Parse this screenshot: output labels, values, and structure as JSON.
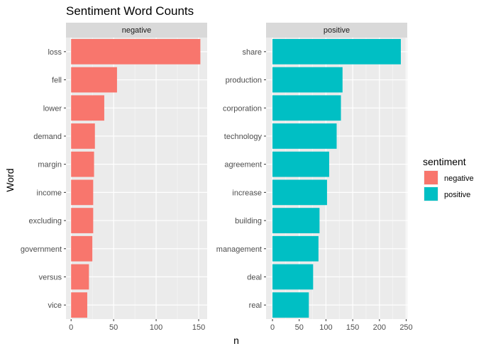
{
  "chart_data": {
    "type": "bar",
    "orientation": "horizontal",
    "title": "Sentiment Word Counts",
    "xlabel": "n",
    "ylabel": "Word",
    "grid": true,
    "legend": {
      "title": "sentiment",
      "placement": "right",
      "entries": [
        {
          "name": "negative",
          "color": "#F8766D"
        },
        {
          "name": "positive",
          "color": "#00BFC4"
        }
      ]
    },
    "panels": [
      {
        "strip": "negative",
        "color": "#F8766D",
        "xlim": [
          -6,
          160
        ],
        "ticks": [
          0,
          50,
          100,
          150
        ],
        "categories": [
          "loss",
          "fell",
          "lower",
          "demand",
          "margin",
          "income",
          "excluding",
          "government",
          "versus",
          "vice"
        ],
        "values": [
          152,
          54,
          39,
          28,
          27,
          26,
          26,
          25,
          21,
          19
        ]
      },
      {
        "strip": "positive",
        "color": "#00BFC4",
        "xlim": [
          -12,
          252
        ],
        "ticks": [
          0,
          50,
          100,
          150,
          200,
          250
        ],
        "categories": [
          "share",
          "production",
          "corporation",
          "technology",
          "agreement",
          "increase",
          "building",
          "management",
          "deal",
          "real"
        ],
        "values": [
          240,
          131,
          128,
          120,
          106,
          102,
          88,
          86,
          76,
          68
        ]
      }
    ]
  }
}
